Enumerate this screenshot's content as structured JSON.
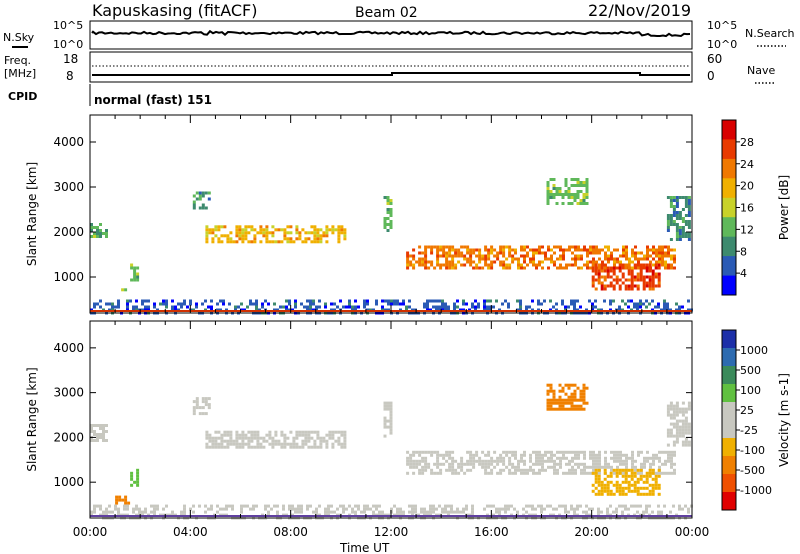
{
  "header": {
    "station": "Kapuskasing (fitACF)",
    "beam": "Beam 02",
    "date": "22/Nov/2019"
  },
  "strip_labels": {
    "nsky": "N.Sky",
    "nsky_ticks": [
      "10^5",
      "10^0"
    ],
    "nsearch": "N.Search",
    "nsearch_ticks": [
      "10^5",
      "10^0"
    ],
    "freq": "Freq.",
    "freq_unit": "[MHz]",
    "freq_ticks": [
      "18",
      "8"
    ],
    "nave": "Nave",
    "nave_ticks": [
      "60",
      "0"
    ],
    "cpid": "CPID",
    "cpid_value": "normal (fast) 151"
  },
  "colors": {
    "power_scale": [
      "#0000ff",
      "#2a5ab5",
      "#3d8a6e",
      "#5fb85a",
      "#c8d22a",
      "#f0b000",
      "#f07800",
      "#e83a00",
      "#d80000"
    ],
    "velocity_scale": [
      "#1c2fa8",
      "#2d6bb0",
      "#3a8a5a",
      "#60c040",
      "#c8c8c0",
      "#c8c8c0",
      "#f0b000",
      "#f08000",
      "#f05000",
      "#e00000"
    ]
  },
  "chart_data": [
    {
      "type": "heatmap",
      "title": "Power",
      "xlabel": "",
      "ylabel": "Slant Range [km]",
      "xlim": [
        0,
        24
      ],
      "ylim": [
        200,
        4600
      ],
      "yticks": [
        "1000",
        "2000",
        "3000",
        "4000"
      ],
      "colorbar_label": "Power [dB]",
      "colorbar_ticks": [
        "28",
        "24",
        "20",
        "16",
        "12",
        "8",
        "4"
      ],
      "regions": [
        {
          "t0": 0.0,
          "t1": 0.6,
          "r0": 1900,
          "r1": 2200,
          "level": 3
        },
        {
          "t0": 1.0,
          "t1": 1.5,
          "r0": 550,
          "r1": 750,
          "level": 4
        },
        {
          "t0": 1.6,
          "t1": 1.9,
          "r0": 900,
          "r1": 1300,
          "level": 3
        },
        {
          "t0": 4.1,
          "t1": 4.7,
          "r0": 2500,
          "r1": 2900,
          "level": 2
        },
        {
          "t0": 4.6,
          "t1": 10.2,
          "r0": 1800,
          "r1": 2150,
          "level": 5
        },
        {
          "t0": 11.7,
          "t1": 12.0,
          "r0": 2000,
          "r1": 2800,
          "level": 3
        },
        {
          "t0": 12.6,
          "t1": 23.3,
          "r0": 1200,
          "r1": 1700,
          "level": 6
        },
        {
          "t0": 18.2,
          "t1": 19.8,
          "r0": 2600,
          "r1": 3200,
          "level": 3
        },
        {
          "t0": 20.0,
          "t1": 22.7,
          "r0": 700,
          "r1": 1300,
          "level": 7
        },
        {
          "t0": 23.0,
          "t1": 23.9,
          "r0": 1800,
          "r1": 2800,
          "level": 2
        },
        {
          "t0": 0.0,
          "t1": 24.0,
          "r0": 200,
          "r1": 500,
          "level": 1
        }
      ]
    },
    {
      "type": "heatmap",
      "title": "Velocity",
      "xlabel": "Time UT",
      "ylabel": "Slant Range [km]",
      "xlim": [
        0,
        24
      ],
      "ylim": [
        200,
        4600
      ],
      "xticks": [
        "00:00",
        "04:00",
        "08:00",
        "12:00",
        "16:00",
        "20:00",
        "00:00"
      ],
      "yticks": [
        "1000",
        "2000",
        "3000",
        "4000"
      ],
      "colorbar_label": "Velocity [m s-1]",
      "colorbar_ticks": [
        "1000",
        "500",
        "100",
        "25",
        "-25",
        "-100",
        "-500",
        "-1000"
      ],
      "regions": [
        {
          "t0": 0.0,
          "t1": 0.6,
          "r0": 1900,
          "r1": 2300,
          "level": 4
        },
        {
          "t0": 1.0,
          "t1": 1.5,
          "r0": 500,
          "r1": 700,
          "level": 7
        },
        {
          "t0": 1.6,
          "t1": 1.9,
          "r0": 900,
          "r1": 1300,
          "level": 3
        },
        {
          "t0": 4.1,
          "t1": 4.7,
          "r0": 2500,
          "r1": 2900,
          "level": 4
        },
        {
          "t0": 4.6,
          "t1": 10.2,
          "r0": 1800,
          "r1": 2150,
          "level": 4
        },
        {
          "t0": 11.7,
          "t1": 12.0,
          "r0": 2000,
          "r1": 2800,
          "level": 4
        },
        {
          "t0": 12.6,
          "t1": 23.3,
          "r0": 1200,
          "r1": 1700,
          "level": 4
        },
        {
          "t0": 18.2,
          "t1": 19.8,
          "r0": 2600,
          "r1": 3200,
          "level": 7
        },
        {
          "t0": 20.0,
          "t1": 22.7,
          "r0": 700,
          "r1": 1300,
          "level": 6
        },
        {
          "t0": 23.0,
          "t1": 23.9,
          "r0": 1800,
          "r1": 2800,
          "level": 4
        },
        {
          "t0": 0.0,
          "t1": 24.0,
          "r0": 200,
          "r1": 500,
          "level": 5
        }
      ]
    }
  ]
}
